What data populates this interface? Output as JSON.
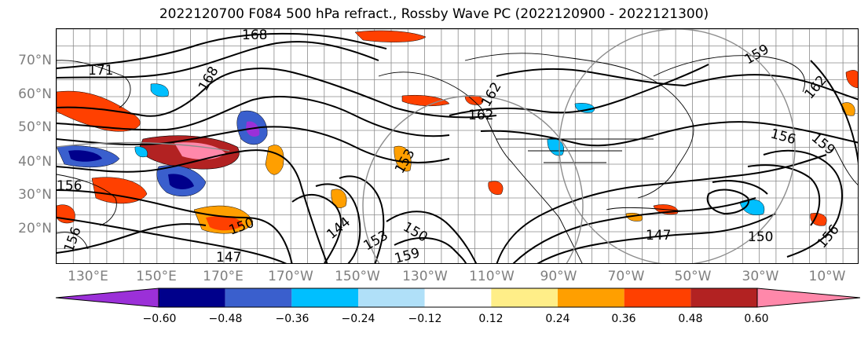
{
  "title": "2022120700 F084 500 hPa refract., Rossby Wave PC (2022120900 - 2022121300)",
  "lat_ticks": [
    "70°N",
    "60°N",
    "50°N",
    "40°N",
    "30°N",
    "20°N"
  ],
  "lon_ticks": [
    "130°E",
    "150°E",
    "170°E",
    "170°W",
    "150°W",
    "130°W",
    "110°W",
    "90°W",
    "70°W",
    "50°W",
    "30°W",
    "10°W"
  ],
  "contour_labels": [
    "168",
    "171",
    "168",
    "162",
    "162",
    "159",
    "162",
    "156",
    "159",
    "156",
    "153",
    "150",
    "150",
    "147",
    "147",
    "144",
    "153",
    "159",
    "156",
    "150",
    "156"
  ],
  "colorbar": {
    "colors": [
      "#9b30d8",
      "#00008b",
      "#3a5fcd",
      "#00bfff",
      "#b0e0f8",
      "#ffffff",
      "#ffee88",
      "#ff9f00",
      "#ff4000",
      "#b22222",
      "#ff88aa"
    ],
    "labels": [
      "−0.60",
      "−0.48",
      "−0.36",
      "−0.24",
      "−0.12",
      "0.12",
      "0.24",
      "0.36",
      "0.48",
      "0.60"
    ]
  }
}
